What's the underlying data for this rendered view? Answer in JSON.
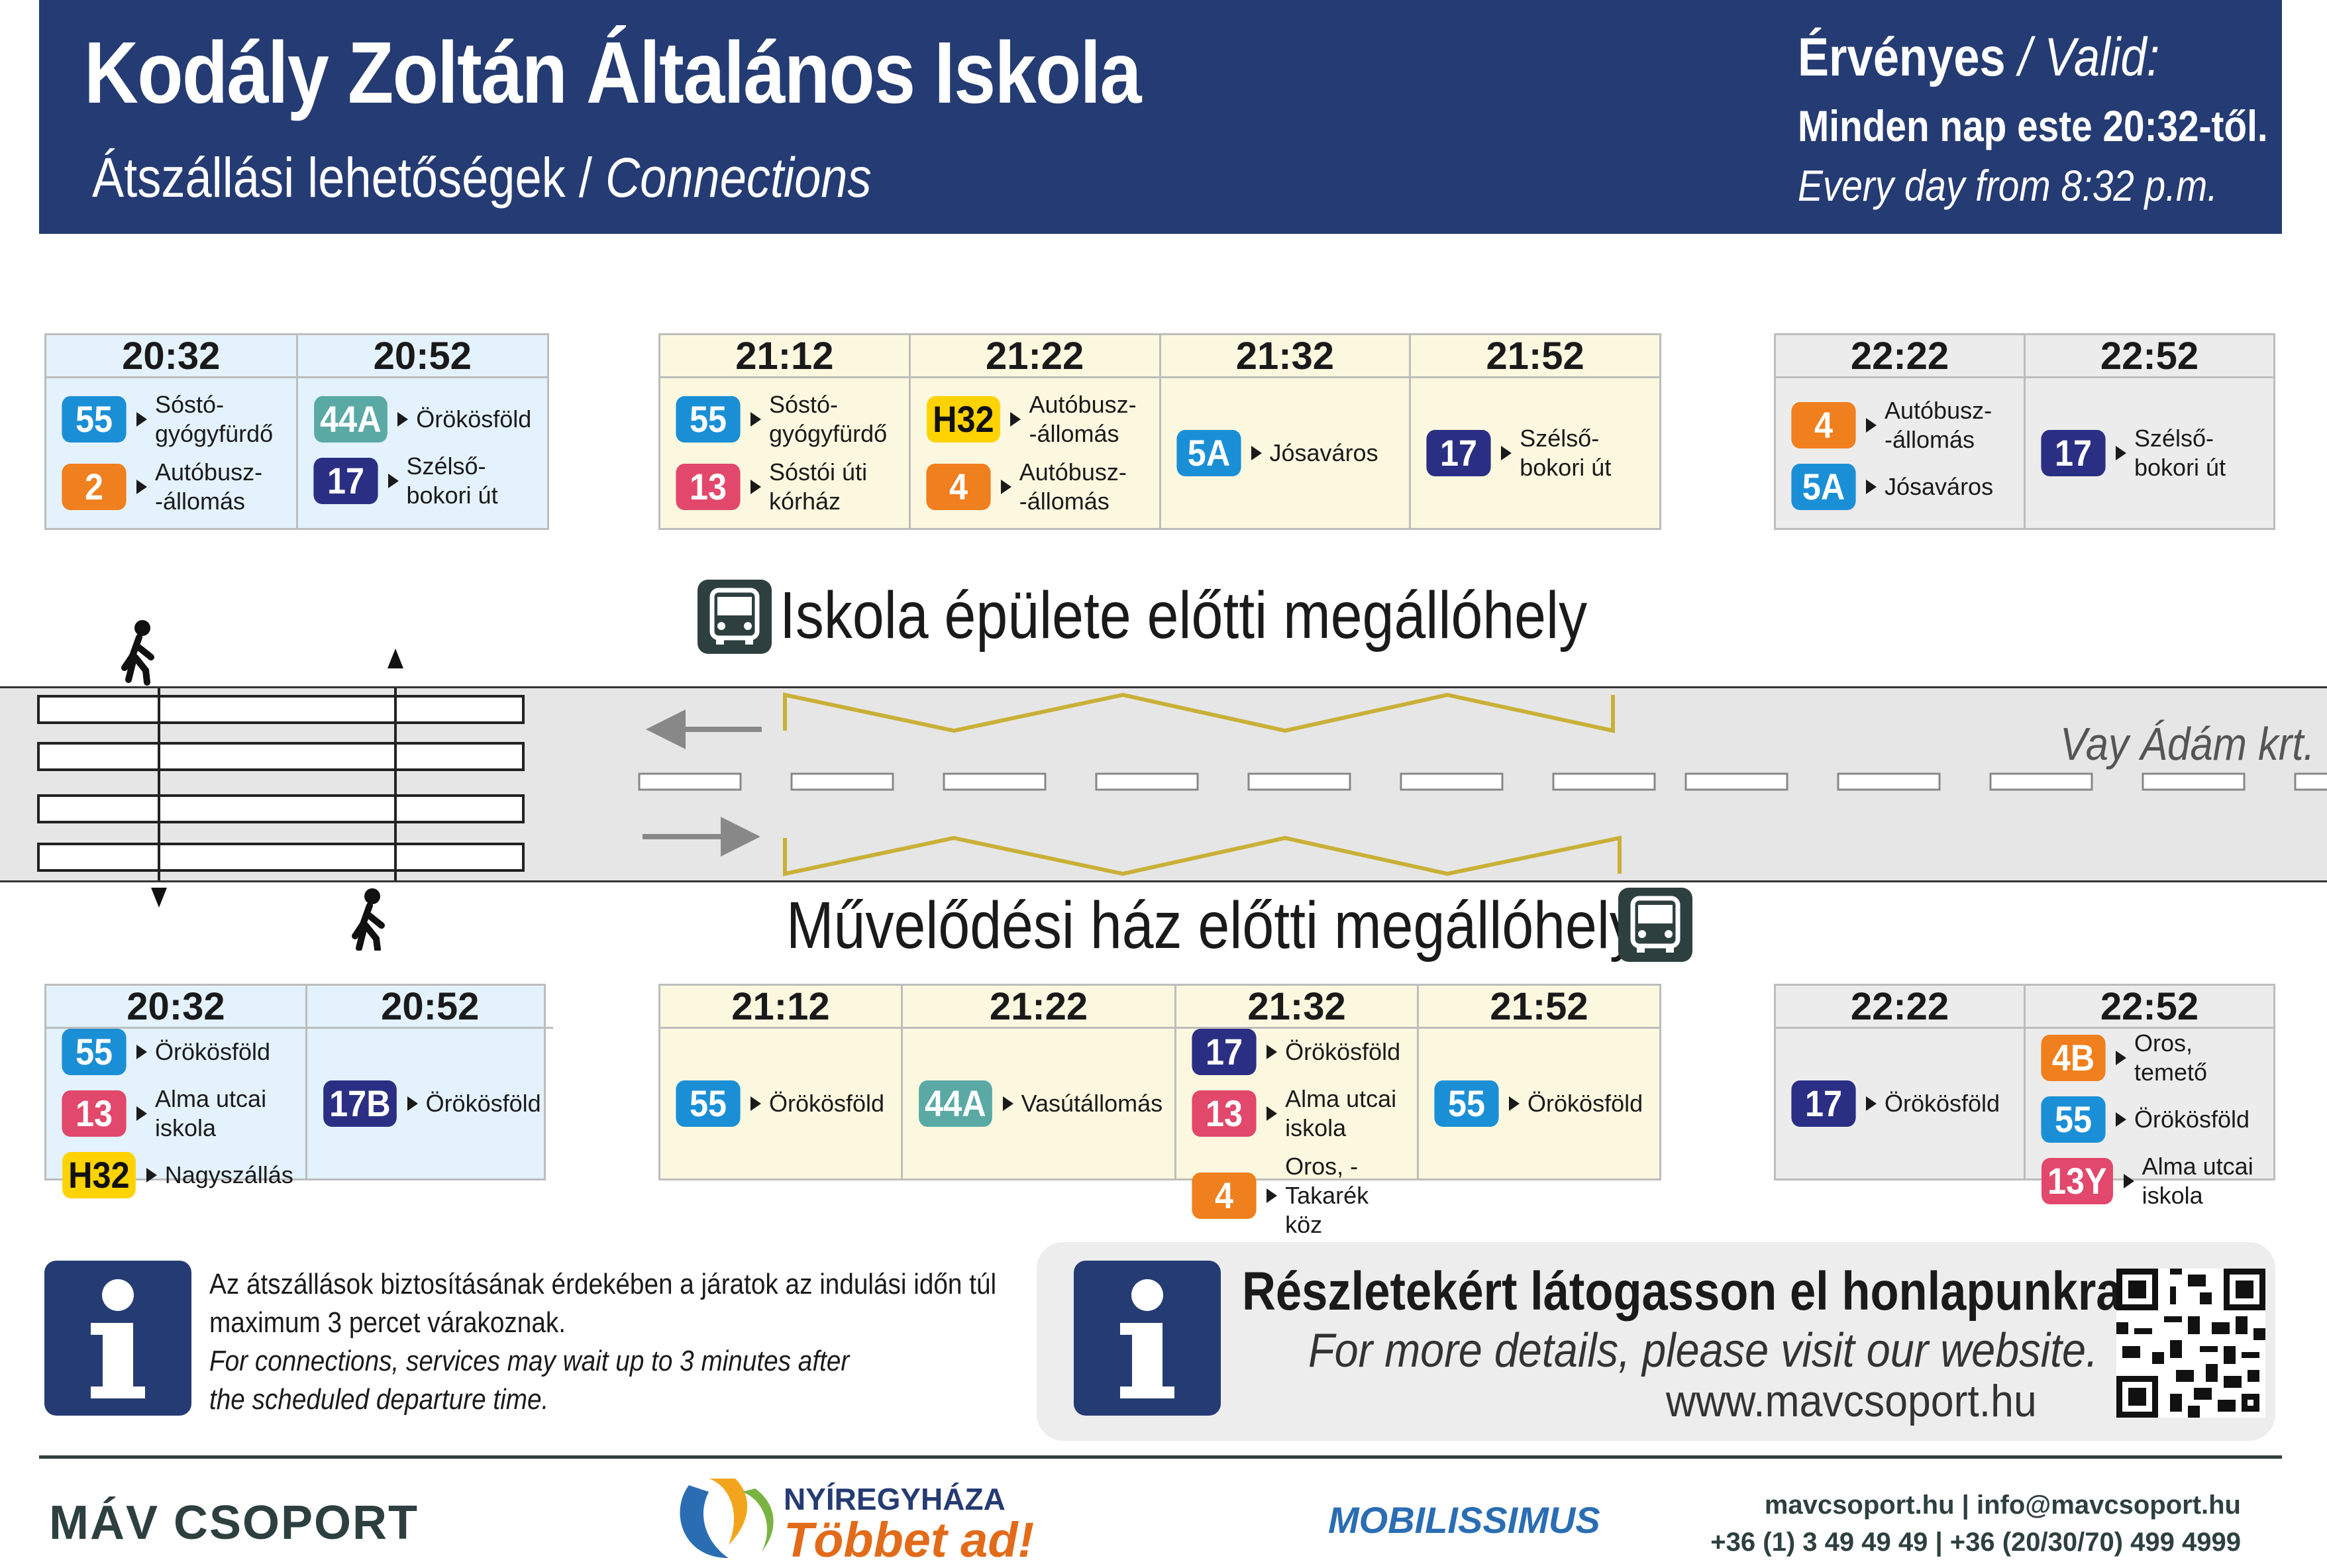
{
  "header": {
    "title": "Kodály Zoltán Általános Iskola",
    "subtitle_hu": "Átszállási lehetőségek / ",
    "subtitle_en": "Connections",
    "valid_hu": "Érvényes ",
    "valid_en": "/ Valid:",
    "valid_line1": "Minden nap este 20:32-től.",
    "valid_line2": "Every day from 8:32 p.m."
  },
  "colors": {
    "navy": "#253b73",
    "line_55": "#1b8fd6",
    "line_2": "#f07f1d",
    "line_44A": "#5aa9a5",
    "line_17": "#2b2f84",
    "line_13": "#e2486b",
    "line_H32": "#ffd300",
    "line_4": "#f07f1d",
    "line_5A": "#1b8fd6",
    "line_4B": "#f07f1d",
    "line_13Y": "#e2486b",
    "line_17B": "#2b2f84"
  },
  "stops": {
    "upper": "Iskola épülete előtti megállóhely",
    "lower": "Művelődési ház előtti megállóhely",
    "street": "Vay Ádám krt."
  },
  "upper_groups": [
    {
      "cols": [
        {
          "time": "20:32",
          "conns": [
            {
              "line": "55",
              "dest": "Sóstó-\ngyógyfürdő"
            },
            {
              "line": "2",
              "dest": "Autóbusz-\n-állomás"
            }
          ]
        },
        {
          "time": "20:52",
          "conns": [
            {
              "line": "44A",
              "dest": "Örökösföld"
            },
            {
              "line": "17",
              "dest": "Szélső-\nbokori út"
            }
          ]
        }
      ]
    },
    {
      "cols": [
        {
          "time": "21:12",
          "conns": [
            {
              "line": "55",
              "dest": "Sóstó-\ngyógyfürdő"
            },
            {
              "line": "13",
              "dest": "Sóstói úti\nkórház"
            }
          ]
        },
        {
          "time": "21:22",
          "conns": [
            {
              "line": "H32",
              "dest": "Autóbusz-\n-állomás"
            },
            {
              "line": "4",
              "dest": "Autóbusz-\n-állomás"
            }
          ]
        },
        {
          "time": "21:32",
          "conns": [
            {
              "line": "5A",
              "dest": "Jósaváros"
            }
          ]
        },
        {
          "time": "21:52",
          "conns": [
            {
              "line": "17",
              "dest": "Szélső-\nbokori út"
            }
          ]
        }
      ]
    },
    {
      "cols": [
        {
          "time": "22:22",
          "conns": [
            {
              "line": "4",
              "dest": "Autóbusz-\n-állomás"
            },
            {
              "line": "5A",
              "dest": "Jósaváros"
            }
          ]
        },
        {
          "time": "22:52",
          "conns": [
            {
              "line": "17",
              "dest": "Szélső-\nbokori út"
            }
          ]
        }
      ]
    }
  ],
  "lower_groups": [
    {
      "cols": [
        {
          "time": "20:32",
          "conns": [
            {
              "line": "55",
              "dest": "Örökösföld"
            },
            {
              "line": "13",
              "dest": "Alma utcai\niskola"
            },
            {
              "line": "H32",
              "dest": "Nagyszállás"
            }
          ]
        },
        {
          "time": "20:52",
          "conns": [
            {
              "line": "17B",
              "dest": "Örökösföld"
            }
          ]
        }
      ]
    },
    {
      "cols": [
        {
          "time": "21:12",
          "conns": [
            {
              "line": "55",
              "dest": "Örökösföld"
            }
          ]
        },
        {
          "time": "21:22",
          "conns": [
            {
              "line": "44A",
              "dest": "Vasútállomás"
            }
          ]
        },
        {
          "time": "21:32",
          "conns": [
            {
              "line": "17",
              "dest": "Örökösföld"
            },
            {
              "line": "13",
              "dest": "Alma utcai\niskola"
            },
            {
              "line": "4",
              "dest": "Oros, -\nTakarék köz"
            }
          ]
        },
        {
          "time": "21:52",
          "conns": [
            {
              "line": "55",
              "dest": "Örökösföld"
            }
          ]
        }
      ]
    },
    {
      "cols": [
        {
          "time": "22:22",
          "conns": [
            {
              "line": "17",
              "dest": "Örökösföld"
            }
          ]
        },
        {
          "time": "22:52",
          "conns": [
            {
              "line": "4B",
              "dest": "Oros, temető"
            },
            {
              "line": "55",
              "dest": "Örökösföld"
            },
            {
              "line": "13Y",
              "dest": "Alma utcai\niskola"
            }
          ]
        }
      ]
    }
  ],
  "notice": {
    "hu1": "Az átszállások biztosításának érdekében a járatok az indulási időn túl",
    "hu2": "maximum 3 percet várakoznak.",
    "en1": "For connections, services may wait up to 3 minutes after",
    "en2": "the scheduled departure time."
  },
  "web": {
    "hu": "Részletekért látogasson el honlapunkra.",
    "en": "For more details, please visit our website.",
    "url": "www.mavcsoport.hu"
  },
  "footer": {
    "mav_logo": "MÁV CSOPORT",
    "nyiregyhaza1": "NYÍREGYHÁZA",
    "nyiregyhaza2": "Többet ad!",
    "mobilissimus": "MOBILISSIMUS",
    "contact1": "mavcsoport.hu | info@mavcsoport.hu",
    "contact2": "+36 (1) 3 49 49 49 | +36 (20/30/70) 499 4999"
  }
}
